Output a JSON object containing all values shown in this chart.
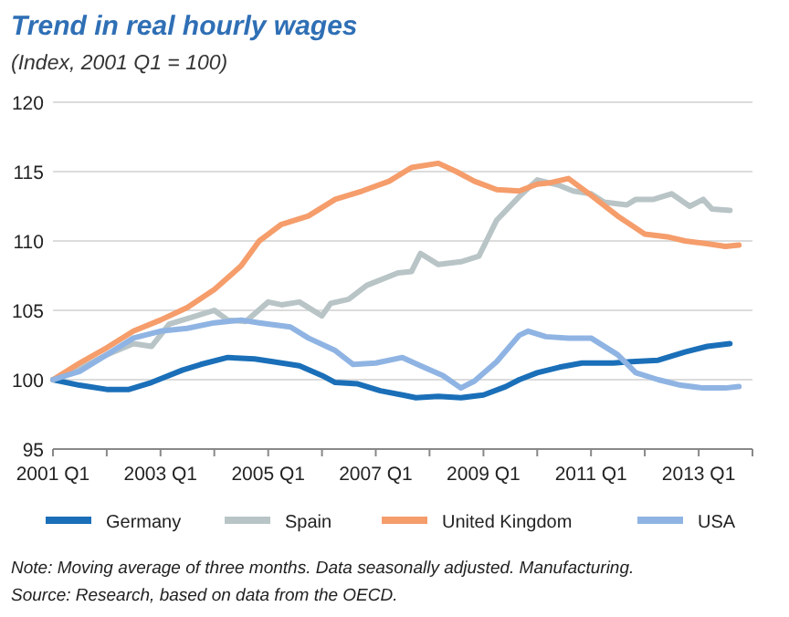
{
  "chart_data": {
    "type": "line",
    "title": "Trend in real hourly wages",
    "subtitle": "(Index, 2001 Q1 = 100)",
    "xlim": [
      "2001-01",
      "2014-01"
    ],
    "xticks": [
      {
        "value": "2001-01",
        "label": "2001 Q1"
      },
      {
        "value": "2002-01",
        "label": null
      },
      {
        "value": "2003-01",
        "label": "2003 Q1"
      },
      {
        "value": "2004-01",
        "label": null
      },
      {
        "value": "2005-01",
        "label": "2005 Q1"
      },
      {
        "value": "2006-01",
        "label": null
      },
      {
        "value": "2007-01",
        "label": "2007 Q1"
      },
      {
        "value": "2008-01",
        "label": null
      },
      {
        "value": "2009-01",
        "label": "2009 Q1"
      },
      {
        "value": "2010-01",
        "label": null
      },
      {
        "value": "2011-01",
        "label": "2011 Q1"
      },
      {
        "value": "2012-01",
        "label": null
      },
      {
        "value": "2013-01",
        "label": "2013 Q1"
      },
      {
        "value": "2014-01",
        "label": null
      }
    ],
    "ylim": [
      95,
      120
    ],
    "yticks": [
      95,
      100,
      105,
      110,
      115,
      120
    ],
    "grid": "y",
    "legend": "bottom",
    "series": [
      {
        "name": "Germany",
        "color": "#1a6fb8",
        "x": [
          "2001-01",
          "2001-07",
          "2002-01",
          "2002-06",
          "2002-11",
          "2003-06",
          "2003-10",
          "2004-04",
          "2004-10",
          "2005-02",
          "2005-08",
          "2006-01",
          "2006-04",
          "2006-09",
          "2007-02",
          "2007-07",
          "2007-10",
          "2008-03",
          "2008-08",
          "2009-01",
          "2009-06",
          "2009-09",
          "2010-01",
          "2010-06",
          "2010-11",
          "2011-06",
          "2011-10",
          "2012-04",
          "2012-10",
          "2013-03",
          "2013-08"
        ],
        "values": [
          100,
          99.6,
          99.3,
          99.3,
          99.8,
          100.7,
          101.1,
          101.6,
          101.5,
          101.3,
          101.0,
          100.3,
          99.8,
          99.7,
          99.2,
          98.9,
          98.7,
          98.8,
          98.7,
          98.9,
          99.5,
          100.0,
          100.5,
          100.9,
          101.2,
          101.2,
          101.3,
          101.4,
          102.0,
          102.4,
          102.6
        ]
      },
      {
        "name": "Spain",
        "color": "#b8c4c6",
        "x": [
          "2001-01",
          "2001-07",
          "2002-01",
          "2002-07",
          "2002-11",
          "2003-03",
          "2003-08",
          "2004-01",
          "2004-04",
          "2004-08",
          "2005-01",
          "2005-04",
          "2005-08",
          "2006-01",
          "2006-03",
          "2006-07",
          "2006-11",
          "2007-06",
          "2007-09",
          "2007-11",
          "2008-03",
          "2008-08",
          "2008-12",
          "2009-04",
          "2009-09",
          "2010-01",
          "2010-06",
          "2010-09",
          "2011-01",
          "2011-04",
          "2011-09",
          "2011-11",
          "2012-03",
          "2012-07",
          "2012-11",
          "2013-02",
          "2013-04",
          "2013-08"
        ],
        "values": [
          100,
          100.8,
          101.8,
          102.6,
          102.4,
          104.0,
          104.5,
          105.0,
          104.3,
          104.2,
          105.6,
          105.4,
          105.6,
          104.6,
          105.5,
          105.8,
          106.8,
          107.7,
          107.8,
          109.1,
          108.3,
          108.5,
          108.9,
          111.5,
          113.2,
          114.4,
          114.0,
          113.6,
          113.4,
          112.8,
          112.6,
          113.0,
          113.0,
          113.4,
          112.5,
          113.0,
          112.3,
          112.2
        ]
      },
      {
        "name": "United Kingdom",
        "color": "#f59d6b",
        "x": [
          "2001-01",
          "2001-07",
          "2002-01",
          "2002-07",
          "2003-01",
          "2003-07",
          "2004-01",
          "2004-07",
          "2004-11",
          "2005-04",
          "2005-10",
          "2006-04",
          "2006-10",
          "2007-04",
          "2007-09",
          "2008-03",
          "2008-07",
          "2008-11",
          "2009-04",
          "2009-09",
          "2010-01",
          "2010-04",
          "2010-08",
          "2011-01",
          "2011-07",
          "2012-01",
          "2012-06",
          "2012-10",
          "2013-03",
          "2013-07",
          "2013-10"
        ],
        "values": [
          100,
          101.2,
          102.3,
          103.5,
          104.3,
          105.2,
          106.5,
          108.2,
          110.0,
          111.2,
          111.8,
          113.0,
          113.6,
          114.3,
          115.3,
          115.6,
          115.0,
          114.3,
          113.7,
          113.6,
          114.1,
          114.2,
          114.5,
          113.3,
          111.8,
          110.5,
          110.3,
          110.0,
          109.8,
          109.6,
          109.7
        ]
      },
      {
        "name": "USA",
        "color": "#8fb4e3",
        "x": [
          "2001-01",
          "2001-07",
          "2002-01",
          "2002-07",
          "2003-01",
          "2003-07",
          "2004-01",
          "2004-07",
          "2004-11",
          "2005-06",
          "2005-10",
          "2006-04",
          "2006-08",
          "2007-01",
          "2007-07",
          "2007-11",
          "2008-04",
          "2008-08",
          "2008-11",
          "2009-04",
          "2009-09",
          "2009-11",
          "2010-03",
          "2010-08",
          "2011-01",
          "2011-07",
          "2011-11",
          "2012-04",
          "2012-09",
          "2013-02",
          "2013-07",
          "2013-10"
        ],
        "values": [
          100,
          100.6,
          101.8,
          103.0,
          103.5,
          103.7,
          104.1,
          104.3,
          104.1,
          103.8,
          103.0,
          102.1,
          101.1,
          101.2,
          101.6,
          101.0,
          100.3,
          99.4,
          99.9,
          101.3,
          103.2,
          103.5,
          103.1,
          103.0,
          103.0,
          101.8,
          100.5,
          100.0,
          99.6,
          99.4,
          99.4,
          99.5
        ]
      }
    ],
    "annotations": [
      "Note: Moving average of three months. Data seasonally adjusted. Manufacturing.",
      "Source: Research, based on data from the OECD."
    ]
  }
}
